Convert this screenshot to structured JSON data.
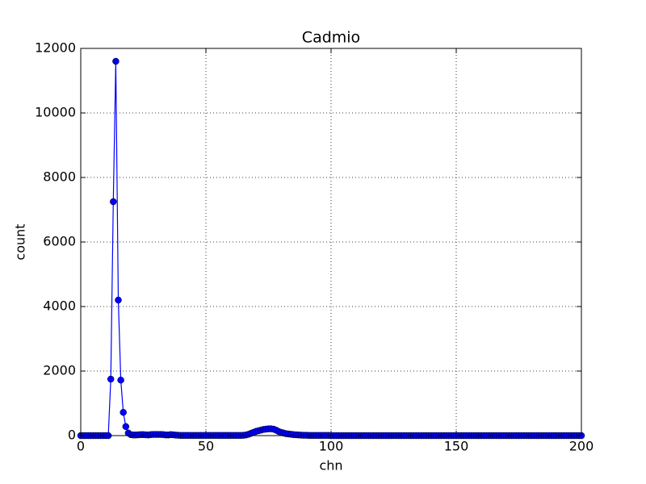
{
  "chart_data": {
    "type": "line",
    "title": "Cadmio",
    "x_label": "chn",
    "y_label": "count",
    "x": [
      0,
      1,
      2,
      3,
      4,
      5,
      6,
      7,
      8,
      9,
      10,
      11,
      12,
      13,
      14,
      15,
      16,
      17,
      18,
      19,
      20,
      21,
      22,
      23,
      24,
      25,
      26,
      27,
      28,
      29,
      30,
      31,
      32,
      33,
      34,
      35,
      36,
      37,
      38,
      39,
      40,
      41,
      42,
      43,
      44,
      45,
      46,
      47,
      48,
      49,
      50,
      51,
      52,
      53,
      54,
      55,
      56,
      57,
      58,
      59,
      60,
      61,
      62,
      63,
      64,
      65,
      66,
      67,
      68,
      69,
      70,
      71,
      72,
      73,
      74,
      75,
      76,
      77,
      78,
      79,
      80,
      81,
      82,
      83,
      84,
      85,
      86,
      87,
      88,
      89,
      90,
      91,
      92,
      93,
      94,
      95,
      96,
      97,
      98,
      99,
      100,
      101,
      102,
      103,
      104,
      105,
      106,
      107,
      108,
      109,
      110,
      111,
      112,
      113,
      114,
      115,
      116,
      117,
      118,
      119,
      120,
      121,
      122,
      123,
      124,
      125,
      126,
      127,
      128,
      129,
      130,
      131,
      132,
      133,
      134,
      135,
      136,
      137,
      138,
      139,
      140,
      141,
      142,
      143,
      144,
      145,
      146,
      147,
      148,
      149,
      150,
      151,
      152,
      153,
      154,
      155,
      156,
      157,
      158,
      159,
      160,
      161,
      162,
      163,
      164,
      165,
      166,
      167,
      168,
      169,
      170,
      171,
      172,
      173,
      174,
      175,
      176,
      177,
      178,
      179,
      180,
      181,
      182,
      183,
      184,
      185,
      186,
      187,
      188,
      189,
      190,
      191,
      192,
      193,
      194,
      195,
      196,
      197,
      198,
      199,
      200
    ],
    "series": [
      {
        "color": "#0000ff",
        "values": [
          0,
          0,
          0,
          0,
          0,
          0,
          0,
          0,
          0,
          0,
          0,
          0,
          1750,
          7250,
          11600,
          4200,
          1720,
          720,
          280,
          80,
          30,
          20,
          20,
          25,
          30,
          30,
          25,
          20,
          30,
          35,
          35,
          35,
          35,
          30,
          20,
          20,
          30,
          25,
          15,
          10,
          5,
          5,
          5,
          5,
          5,
          5,
          5,
          5,
          5,
          5,
          5,
          5,
          5,
          5,
          5,
          5,
          5,
          5,
          5,
          5,
          5,
          5,
          5,
          5,
          5,
          10,
          20,
          40,
          70,
          100,
          130,
          150,
          170,
          190,
          200,
          210,
          210,
          200,
          170,
          130,
          100,
          80,
          60,
          50,
          40,
          30,
          25,
          20,
          15,
          10,
          10,
          5,
          5,
          5,
          5,
          5,
          5,
          5,
          5,
          5,
          0,
          0,
          0,
          0,
          0,
          0,
          0,
          0,
          0,
          0,
          0,
          0,
          0,
          0,
          0,
          0,
          0,
          0,
          0,
          0,
          0,
          0,
          0,
          0,
          0,
          0,
          0,
          0,
          0,
          0,
          0,
          0,
          0,
          0,
          0,
          0,
          0,
          0,
          0,
          0,
          0,
          0,
          0,
          0,
          0,
          0,
          0,
          0,
          0,
          0,
          0,
          0,
          0,
          0,
          0,
          0,
          0,
          0,
          0,
          0,
          0,
          0,
          0,
          0,
          0,
          0,
          0,
          0,
          0,
          0,
          0,
          0,
          0,
          0,
          0,
          0,
          0,
          0,
          0,
          0,
          0,
          0,
          0,
          0,
          0,
          0,
          0,
          0,
          0,
          0,
          0,
          0,
          0,
          0,
          0,
          0,
          0,
          0,
          0,
          0,
          0
        ]
      }
    ],
    "xlim": [
      0,
      200
    ],
    "xticks": [
      0,
      50,
      100,
      150,
      200
    ],
    "ylim": [
      0,
      12000
    ],
    "yticks": [
      0,
      2000,
      4000,
      6000,
      8000,
      10000,
      12000
    ],
    "grid": true
  }
}
